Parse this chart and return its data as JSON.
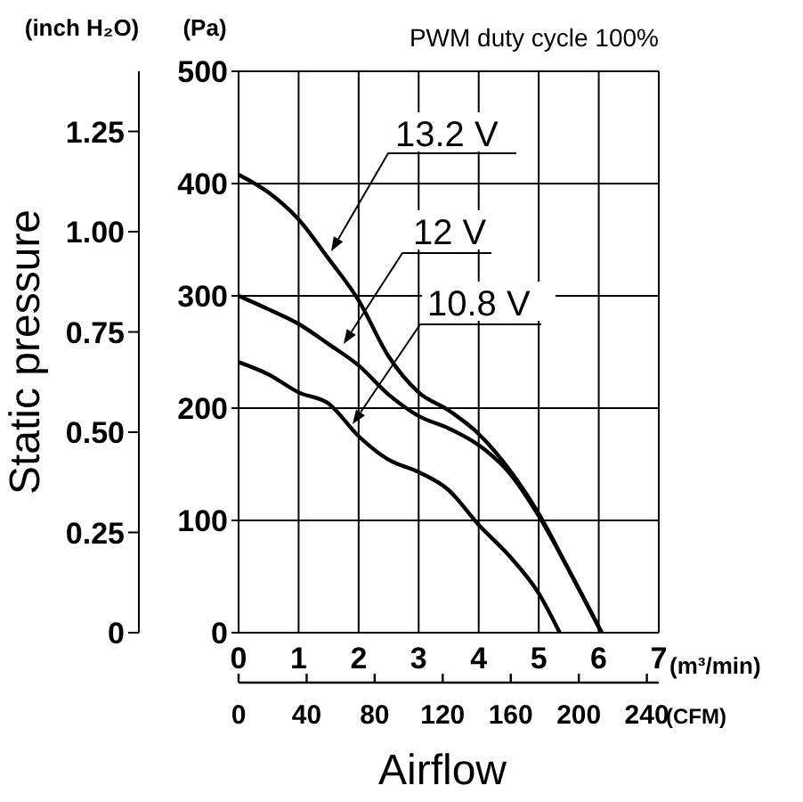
{
  "chart_data": {
    "type": "line",
    "title": "PWM duty cycle 100%",
    "ylabel": "(Pa)",
    "y2label": "(inch H₂O)",
    "xlabel": "(m³/min)",
    "x2label": "(CFM)",
    "annotations": [
      "Static pressure",
      "Airflow"
    ],
    "x": [
      0,
      0.5,
      1,
      1.5,
      2,
      2.5,
      3,
      3.5,
      4,
      4.5,
      5,
      5.5,
      6.05
    ],
    "series": [
      {
        "name": "13.2 V",
        "color": "#000000",
        "values": [
          408,
          392,
          368,
          333,
          296,
          246,
          214,
          198,
          177,
          146,
          106,
          56,
          0
        ]
      },
      {
        "name": "12 V",
        "color": "#000000",
        "values": [
          300,
          288,
          275,
          257,
          238,
          212,
          193,
          182,
          167,
          143,
          104,
          56,
          0
        ]
      },
      {
        "name": "10.8 V",
        "color": "#000000",
        "x": [
          0,
          0.5,
          1,
          1.5,
          2,
          2.5,
          3,
          3.5,
          4,
          4.5,
          5,
          5.35
        ],
        "values": [
          241,
          230,
          214,
          204,
          175,
          154,
          143,
          127,
          96,
          69,
          35,
          0
        ]
      }
    ],
    "xlim": [
      0,
      7
    ],
    "xticks": [
      0,
      1,
      2,
      3,
      4,
      5,
      6,
      7
    ],
    "ylim": [
      0,
      500
    ],
    "yticks": [
      0,
      100,
      200,
      300,
      400,
      500
    ],
    "y2lim": [
      0,
      1.4
    ],
    "y2ticks": [
      0,
      0.25,
      {
        "value": 0.5,
        "label": "0.50"
      },
      0.75,
      {
        "value": 1,
        "label": "1.00"
      },
      1.25
    ],
    "x2lim": [
      0,
      247
    ],
    "x2ticks": [
      0,
      40,
      80,
      120,
      160,
      200,
      240
    ],
    "grid": true,
    "marker": "none",
    "line_style": "solid"
  }
}
